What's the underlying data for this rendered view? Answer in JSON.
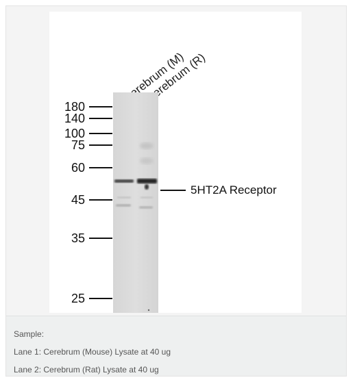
{
  "blot": {
    "lane_labels": [
      "Cerebrum (M)",
      "Cerebrum (R)"
    ],
    "markers": [
      "180",
      "140",
      "100",
      "75",
      "60",
      "45",
      "35",
      "25"
    ],
    "band_label": "5HT2A Receptor"
  },
  "caption": {
    "lines": [
      "Sample:",
      "Lane 1: Cerebrum (Mouse) Lysate at 40 ug",
      "Lane 2: Cerebrum (Rat) Lysate at 40 ug"
    ]
  }
}
